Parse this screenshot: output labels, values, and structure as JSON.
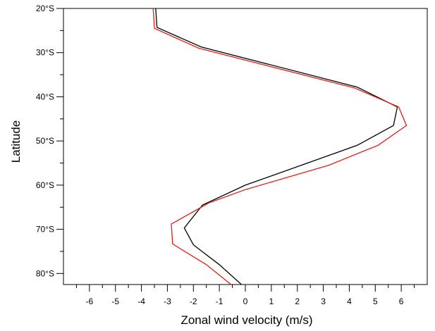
{
  "chart_data": {
    "type": "line",
    "xlabel": "Zonal wind velocity (m/s)",
    "ylabel": "Latitude",
    "xlim": [
      -7.0,
      7.0
    ],
    "ylim": [
      20,
      82.5
    ],
    "x_ticks": [
      -6,
      -5,
      -4,
      -3,
      -2,
      -1,
      0,
      1,
      2,
      3,
      4,
      5,
      6
    ],
    "x_tick_labels": [
      "-6",
      "-5",
      "-4",
      "-3",
      "-2",
      "-1",
      "0",
      "1",
      "2",
      "3",
      "4",
      "5",
      "6"
    ],
    "y_ticks": [
      20,
      30,
      40,
      50,
      60,
      70,
      80
    ],
    "y_tick_labels": [
      "20°S",
      "30°S",
      "40°S",
      "50°S",
      "60°S",
      "70°S",
      "80°S"
    ],
    "grid": false,
    "series": [
      {
        "color": "#000000",
        "points": [
          {
            "x": -3.45,
            "y": 20.0
          },
          {
            "x": -3.4,
            "y": 24.3
          },
          {
            "x": -1.7,
            "y": 28.7
          },
          {
            "x": 4.3,
            "y": 37.8
          },
          {
            "x": 5.85,
            "y": 42.3
          },
          {
            "x": 5.7,
            "y": 46.5
          },
          {
            "x": 4.3,
            "y": 51.0
          },
          {
            "x": 0.0,
            "y": 60.0
          },
          {
            "x": -1.65,
            "y": 64.5
          },
          {
            "x": -2.35,
            "y": 69.7
          },
          {
            "x": -2.0,
            "y": 73.5
          },
          {
            "x": -1.0,
            "y": 78.0
          },
          {
            "x": -0.15,
            "y": 82.5
          }
        ]
      },
      {
        "color": "#e0201e",
        "points": [
          {
            "x": -3.55,
            "y": 20.0
          },
          {
            "x": -3.5,
            "y": 24.5
          },
          {
            "x": -1.8,
            "y": 29.0
          },
          {
            "x": 4.2,
            "y": 38.0
          },
          {
            "x": 5.9,
            "y": 42.3
          },
          {
            "x": 6.2,
            "y": 46.5
          },
          {
            "x": 5.1,
            "y": 51.0
          },
          {
            "x": 3.2,
            "y": 55.5
          },
          {
            "x": 0.0,
            "y": 61.0
          },
          {
            "x": -1.4,
            "y": 64.0
          },
          {
            "x": -2.85,
            "y": 68.8
          },
          {
            "x": -2.8,
            "y": 73.3
          },
          {
            "x": -1.5,
            "y": 78.0
          },
          {
            "x": -0.55,
            "y": 82.5
          }
        ]
      }
    ]
  }
}
